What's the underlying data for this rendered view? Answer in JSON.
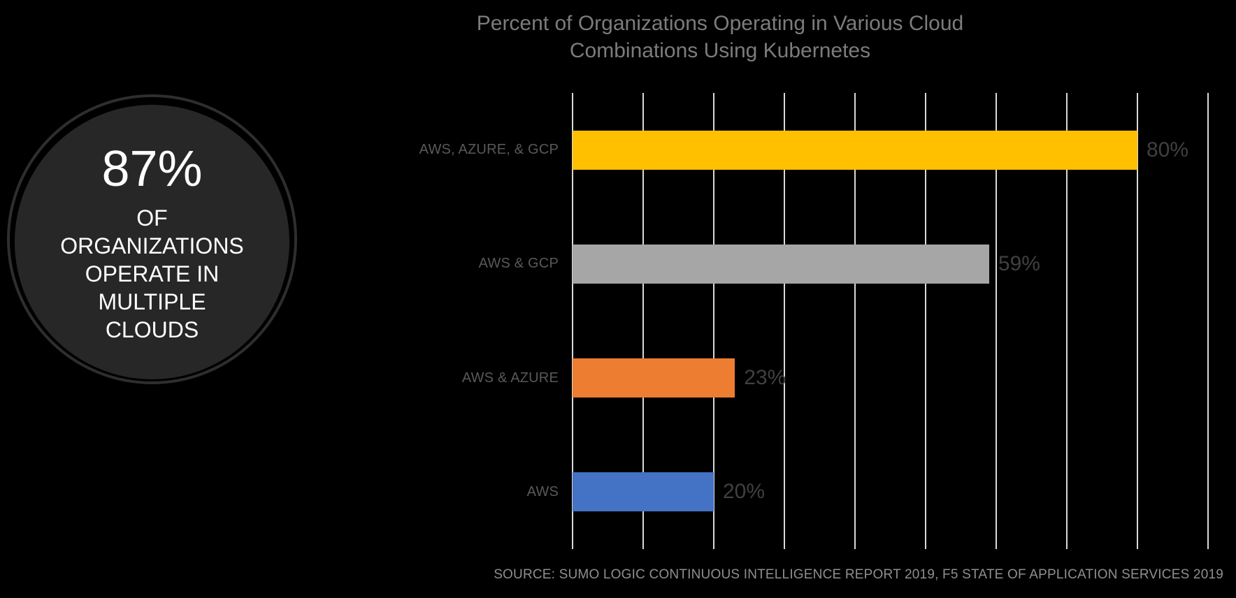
{
  "canvas": {
    "background": "#000000"
  },
  "stat_circle": {
    "value": "87%",
    "caption": "OF\nORGANIZATIONS\nOPERATE IN\nMULTIPLE\nCLOUDS",
    "fill_color": "#272727",
    "ring_color": "#2E2E2E",
    "text_color": "#FFFFFF"
  },
  "chart_data": {
    "type": "bar",
    "orientation": "horizontal",
    "title": "Percent of Organizations Operating in Various Cloud Combinations Using Kubernetes",
    "categories": [
      "AWS, AZURE, & GCP",
      "AWS & GCP",
      "AWS & AZURE",
      "AWS"
    ],
    "values": [
      80,
      59,
      23,
      20
    ],
    "value_labels": [
      "80%",
      "59%",
      "23%",
      "20%"
    ],
    "bar_colors": [
      "#FFC000",
      "#A6A6A6",
      "#ED7D31",
      "#4472C4"
    ],
    "xlim": [
      0,
      90
    ],
    "gridline_step": 10,
    "grid": true,
    "legend": false,
    "gridline_color": "#D9D9D9",
    "title_color": "#7C7C7C",
    "category_label_color": "#595959",
    "value_label_color": "#404040"
  },
  "source_note": {
    "text": "SOURCE: SUMO LOGIC CONTINUOUS INTELLIGENCE REPORT 2019, F5 STATE OF APPLICATION SERVICES 2019",
    "color": "#8F8F8F"
  }
}
